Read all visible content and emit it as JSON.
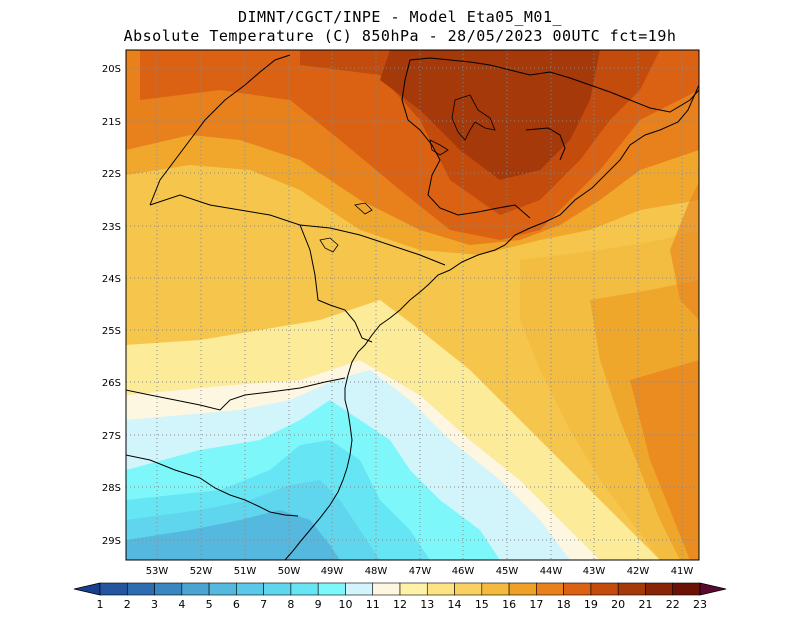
{
  "header": {
    "line1": "DIMNT/CGCT/INPE  -  Model Eta05_M01_",
    "line2": "Absolute Temperature (C) 850hPa  -  28/05/2023 00UTC fct=19h"
  },
  "map": {
    "lat_labels": [
      "20S",
      "21S",
      "22S",
      "23S",
      "24S",
      "25S",
      "26S",
      "27S",
      "28S",
      "29S"
    ],
    "lon_labels": [
      "53W",
      "52W",
      "51W",
      "50W",
      "49W",
      "48W",
      "47W",
      "46W",
      "45W",
      "44W",
      "43W",
      "42W",
      "41W"
    ]
  },
  "colorbar": {
    "levels": [
      "1",
      "2",
      "3",
      "4",
      "5",
      "6",
      "7",
      "8",
      "9",
      "10",
      "11",
      "12",
      "13",
      "14",
      "15",
      "16",
      "17",
      "18",
      "19",
      "20",
      "21",
      "22",
      "23"
    ],
    "colors": [
      "#1a3f8f",
      "#23569f",
      "#2e6cb0",
      "#3a86c0",
      "#4aa3d0",
      "#55b8df",
      "#5ac8e8",
      "#5fd6ee",
      "#66e6f4",
      "#7df7fa",
      "#d2f4fb",
      "#fdf6e1",
      "#fdf2a8",
      "#fde385",
      "#f8d063",
      "#f3ba3f",
      "#eea126",
      "#e8801c",
      "#db6212",
      "#c34b0c",
      "#a53909",
      "#872607",
      "#6b1205",
      "#5a0a30"
    ]
  }
}
